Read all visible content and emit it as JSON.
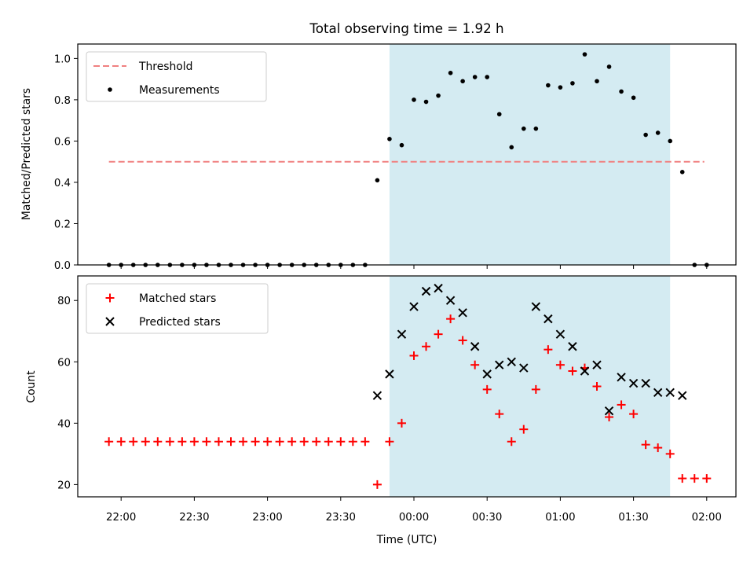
{
  "title": "Total observing time = 1.92 h",
  "chart_data": [
    {
      "type": "scatter",
      "ylabel": "Matched/Predicted stars",
      "ylim": [
        0,
        1.07
      ],
      "yticks": [
        "0.0",
        "0.2",
        "0.4",
        "0.6",
        "0.8",
        "1.0"
      ],
      "legend_position": "upper-left",
      "legend": [
        {
          "label": "Threshold",
          "style": "dashed-line",
          "color": "#f08080"
        },
        {
          "label": "Measurements",
          "style": "dot",
          "color": "#000000"
        }
      ],
      "threshold": {
        "value": 0.5,
        "x_start": "21:55",
        "x_end": "01:59"
      },
      "shaded_region": {
        "start": "23:50",
        "end": "01:45",
        "color": "#add8e6"
      },
      "series": [
        {
          "name": "Measurements",
          "x": [
            "21:55",
            "22:00",
            "22:05",
            "22:10",
            "22:15",
            "22:20",
            "22:25",
            "22:30",
            "22:35",
            "22:40",
            "22:45",
            "22:50",
            "22:55",
            "23:00",
            "23:05",
            "23:10",
            "23:15",
            "23:20",
            "23:25",
            "23:30",
            "23:35",
            "23:40",
            "23:45",
            "23:50",
            "23:55",
            "00:00",
            "00:05",
            "00:10",
            "00:15",
            "00:20",
            "00:25",
            "00:30",
            "00:35",
            "00:40",
            "00:45",
            "00:50",
            "00:55",
            "01:00",
            "01:05",
            "01:10",
            "01:15",
            "01:20",
            "01:25",
            "01:30",
            "01:35",
            "01:40",
            "01:45",
            "01:50",
            "01:55",
            "02:00"
          ],
          "y": [
            0,
            0,
            0,
            0,
            0,
            0,
            0,
            0,
            0,
            0,
            0,
            0,
            0,
            0,
            0,
            0,
            0,
            0,
            0,
            0,
            0,
            0,
            0.41,
            0.61,
            0.58,
            0.8,
            0.79,
            0.82,
            0.93,
            0.89,
            0.91,
            0.91,
            0.73,
            0.57,
            0.66,
            0.66,
            0.87,
            0.86,
            0.88,
            1.02,
            0.89,
            0.96,
            0.84,
            0.81,
            0.63,
            0.64,
            0.6,
            0.45,
            0,
            0
          ]
        }
      ]
    },
    {
      "type": "scatter",
      "xlabel": "Time (UTC)",
      "ylabel": "Count",
      "ylim": [
        16,
        88
      ],
      "yticks": [
        "20",
        "40",
        "60",
        "80"
      ],
      "xticks": [
        "22:00",
        "22:30",
        "23:00",
        "23:30",
        "00:00",
        "00:30",
        "01:00",
        "01:30",
        "02:00"
      ],
      "legend_position": "upper-left",
      "legend": [
        {
          "label": "Matched stars",
          "style": "plus",
          "color": "#ff0000"
        },
        {
          "label": "Predicted stars",
          "style": "x",
          "color": "#000000"
        }
      ],
      "shaded_region": {
        "start": "23:50",
        "end": "01:45",
        "color": "#add8e6"
      },
      "series": [
        {
          "name": "Matched stars",
          "x": [
            "21:55",
            "22:00",
            "22:05",
            "22:10",
            "22:15",
            "22:20",
            "22:25",
            "22:30",
            "22:35",
            "22:40",
            "22:45",
            "22:50",
            "22:55",
            "23:00",
            "23:05",
            "23:10",
            "23:15",
            "23:20",
            "23:25",
            "23:30",
            "23:35",
            "23:40",
            "23:45",
            "23:50",
            "23:55",
            "00:00",
            "00:05",
            "00:10",
            "00:15",
            "00:20",
            "00:25",
            "00:30",
            "00:35",
            "00:40",
            "00:45",
            "00:50",
            "00:55",
            "01:00",
            "01:05",
            "01:10",
            "01:15",
            "01:20",
            "01:25",
            "01:30",
            "01:35",
            "01:40",
            "01:45",
            "01:50",
            "01:55",
            "02:00"
          ],
          "y": [
            34,
            34,
            34,
            34,
            34,
            34,
            34,
            34,
            34,
            34,
            34,
            34,
            34,
            34,
            34,
            34,
            34,
            34,
            34,
            34,
            34,
            34,
            20,
            34,
            40,
            62,
            65,
            69,
            74,
            67,
            59,
            51,
            43,
            34,
            38,
            51,
            64,
            59,
            57,
            58,
            52,
            42,
            46,
            43,
            33,
            32,
            30,
            22,
            22,
            22
          ]
        },
        {
          "name": "Predicted stars",
          "x": [
            "23:45",
            "23:50",
            "23:55",
            "00:00",
            "00:05",
            "00:10",
            "00:15",
            "00:20",
            "00:25",
            "00:30",
            "00:35",
            "00:40",
            "00:45",
            "00:50",
            "00:55",
            "01:00",
            "01:05",
            "01:10",
            "01:15",
            "01:20",
            "01:25",
            "01:30",
            "01:35",
            "01:40",
            "01:45",
            "01:50"
          ],
          "y": [
            49,
            56,
            69,
            78,
            83,
            84,
            80,
            76,
            65,
            56,
            59,
            60,
            58,
            78,
            74,
            69,
            65,
            57,
            59,
            44,
            55,
            53,
            53,
            50,
            50,
            49
          ]
        }
      ]
    }
  ]
}
